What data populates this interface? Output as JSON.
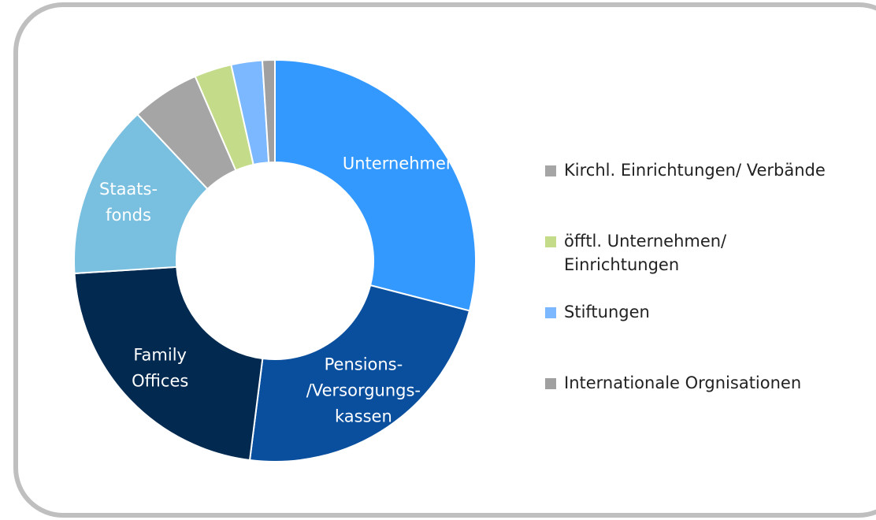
{
  "chart_data": {
    "type": "donut",
    "categories": [
      "Unternehmen",
      "Pensions-\n/Versorgungs-\nkassen",
      "Family\nOffices",
      "Staats-\nfonds",
      "Kirchl. Einrichtungen/ Verbände",
      "öfftl. Unternehmen/\nEinrichtungen",
      "Stiftungen",
      "Internationale Orgnisationen"
    ],
    "values": [
      29,
      23,
      22,
      14,
      5.5,
      3,
      2.5,
      1
    ],
    "colors": [
      "#3399ff",
      "#0a4f9e",
      "#022a50",
      "#79bfdf",
      "#a5a5a5",
      "#c4dc8a",
      "#7bb8ff",
      "#a0a0a0"
    ],
    "legend_position": "right"
  }
}
